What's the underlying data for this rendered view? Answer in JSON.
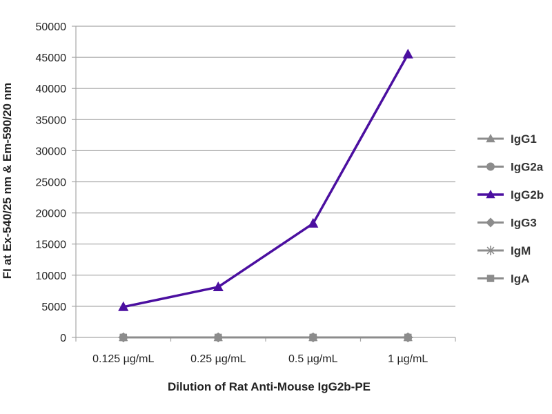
{
  "chart_data": {
    "type": "line",
    "title": "",
    "xlabel": "Dilution of Rat Anti-Mouse IgG2b-PE",
    "ylabel": "FI at Ex-540/25 nm & Em-590/20 nm",
    "categories": [
      "0.125 µg/mL",
      "0.25 µg/mL",
      "0.5 µg/mL",
      "1 µg/mL"
    ],
    "ylim": [
      0,
      50000
    ],
    "yticks": [
      0,
      5000,
      10000,
      15000,
      20000,
      25000,
      30000,
      35000,
      40000,
      45000,
      50000
    ],
    "grid": true,
    "legend_position": "right",
    "series": [
      {
        "name": "IgG1",
        "values": [
          0,
          0,
          0,
          0
        ],
        "color": "#8c8c8c",
        "marker": "triangle"
      },
      {
        "name": "IgG2a",
        "values": [
          0,
          0,
          0,
          0
        ],
        "color": "#8c8c8c",
        "marker": "circle"
      },
      {
        "name": "IgG2b",
        "values": [
          4900,
          8100,
          18300,
          45500
        ],
        "color": "#4b0fa0",
        "marker": "triangle"
      },
      {
        "name": "IgG3",
        "values": [
          0,
          0,
          0,
          0
        ],
        "color": "#8c8c8c",
        "marker": "diamond"
      },
      {
        "name": "IgM",
        "values": [
          0,
          0,
          0,
          0
        ],
        "color": "#8c8c8c",
        "marker": "star"
      },
      {
        "name": "IgA",
        "values": [
          0,
          0,
          0,
          0
        ],
        "color": "#8c8c8c",
        "marker": "square"
      }
    ]
  }
}
